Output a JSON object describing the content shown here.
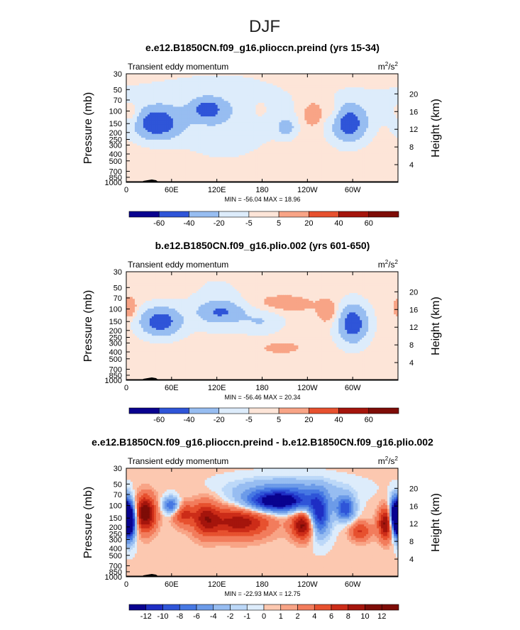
{
  "figure_title": "DJF",
  "palette": {
    "negative": [
      "#09028f",
      "#1e2ec4",
      "#2f55d8",
      "#4678e3",
      "#6c9be8",
      "#97bdf1",
      "#bcd8f8",
      "#ddecfb"
    ],
    "neutral": "#fde5d8",
    "positive": [
      "#fcc8b0",
      "#f8a486",
      "#f27c5c",
      "#e7512f",
      "#cc2c18",
      "#a5150c",
      "#7e0c07"
    ]
  },
  "chart_data": [
    {
      "type": "heatmap",
      "title": "e.e12.B1850CN.f09_g16.plioccn.preind (yrs 15-34)",
      "left_label": "Transient eddy momentum",
      "units": "m²/s²",
      "units_base": "m",
      "units_exp1": "2",
      "units_mid": "/s",
      "units_exp2": "2",
      "ylabel": "Pressure (mb)",
      "ylabel_right": "Height (km)",
      "x_ticks": [
        "0",
        "60E",
        "120E",
        "180",
        "120W",
        "60W"
      ],
      "x_tick_values": [
        0,
        60,
        120,
        180,
        240,
        300
      ],
      "xlim": [
        0,
        360
      ],
      "y_ticks": [
        "30",
        "50",
        "70",
        "100",
        "150",
        "200",
        "250",
        "300",
        "400",
        "500",
        "700",
        "850",
        "1000"
      ],
      "y_tick_values": [
        30,
        50,
        70,
        100,
        150,
        200,
        250,
        300,
        400,
        500,
        700,
        850,
        1000
      ],
      "ylim": [
        1000,
        30
      ],
      "y_scale": "log",
      "height_ticks": [
        "4",
        "8",
        "12",
        "16",
        "20"
      ],
      "height_tick_values": [
        4,
        8,
        12,
        16,
        20
      ],
      "stats": "MIN = -56.04   MAX =  18.96",
      "min": -56.04,
      "max": 18.96,
      "background": 1,
      "levels": [
        -60,
        -40,
        -20,
        -5,
        5,
        20,
        40,
        60
      ],
      "level_labels": [
        "-60",
        "-40",
        "-20",
        "-5",
        "5",
        "20",
        "40",
        "60"
      ],
      "features": [
        {
          "lon": 40,
          "p": 150,
          "value": -54,
          "lon_width": 22,
          "logp_width": 0.16
        },
        {
          "lon": 107,
          "p": 95,
          "value": -40,
          "lon_width": 14,
          "logp_width": 0.1
        },
        {
          "lon": 295,
          "p": 150,
          "value": -52,
          "lon_width": 17,
          "logp_width": 0.19
        },
        {
          "lon": 212,
          "p": 170,
          "value": -28,
          "lon_width": 9,
          "logp_width": 0.1
        },
        {
          "lon": 130,
          "p": 150,
          "value": -15,
          "lon_width": 45,
          "logp_width": 0.35
        },
        {
          "lon": 70,
          "p": 70,
          "value": -8,
          "lon_width": 150,
          "logp_width": 0.3
        },
        {
          "lon": 8,
          "p": 110,
          "value": 17,
          "lon_width": 8,
          "logp_width": 0.1
        },
        {
          "lon": 248,
          "p": 110,
          "value": 18,
          "lon_width": 10,
          "logp_width": 0.12
        },
        {
          "lon": 275,
          "p": 105,
          "value": 14,
          "lon_width": 8,
          "logp_width": 0.12
        },
        {
          "lon": 175,
          "p": 95,
          "value": 9,
          "lon_width": 10,
          "logp_width": 0.12
        },
        {
          "lon": 158,
          "p": 180,
          "value": 7,
          "lon_width": 12,
          "logp_width": 0.12
        }
      ]
    },
    {
      "type": "heatmap",
      "title": "b.e12.B1850CN.f09_g16.plio.002 (yrs 601-650)",
      "left_label": "Transient eddy momentum",
      "units": "m²/s²",
      "units_base": "m",
      "units_exp1": "2",
      "units_mid": "/s",
      "units_exp2": "2",
      "ylabel": "Pressure (mb)",
      "ylabel_right": "Height (km)",
      "x_ticks": [
        "0",
        "60E",
        "120E",
        "180",
        "120W",
        "60W"
      ],
      "x_tick_values": [
        0,
        60,
        120,
        180,
        240,
        300
      ],
      "xlim": [
        0,
        360
      ],
      "y_ticks": [
        "30",
        "50",
        "70",
        "100",
        "150",
        "200",
        "250",
        "300",
        "400",
        "500",
        "700",
        "850",
        "1000"
      ],
      "y_tick_values": [
        30,
        50,
        70,
        100,
        150,
        200,
        250,
        300,
        400,
        500,
        700,
        850,
        1000
      ],
      "ylim": [
        1000,
        30
      ],
      "y_scale": "log",
      "height_ticks": [
        "4",
        "8",
        "12",
        "16",
        "20"
      ],
      "height_tick_values": [
        4,
        8,
        12,
        16,
        20
      ],
      "stats": "MIN = -56.46   MAX =  20.34",
      "min": -56.46,
      "max": 20.34,
      "background": 1,
      "levels": [
        -60,
        -40,
        -20,
        -5,
        5,
        20,
        40,
        60
      ],
      "level_labels": [
        "-60",
        "-40",
        "-20",
        "-5",
        "5",
        "20",
        "40",
        "60"
      ],
      "features": [
        {
          "lon": 45,
          "p": 150,
          "value": -54,
          "lon_width": 20,
          "logp_width": 0.15
        },
        {
          "lon": 300,
          "p": 160,
          "value": -55,
          "lon_width": 15,
          "logp_width": 0.2
        },
        {
          "lon": 125,
          "p": 110,
          "value": -35,
          "lon_width": 22,
          "logp_width": 0.11
        },
        {
          "lon": 180,
          "p": 150,
          "value": -20,
          "lon_width": 20,
          "logp_width": 0.12
        },
        {
          "lon": 120,
          "p": 90,
          "value": -10,
          "lon_width": 30,
          "logp_width": 0.35
        },
        {
          "lon": 5,
          "p": 100,
          "value": 18,
          "lon_width": 7,
          "logp_width": 0.1
        },
        {
          "lon": 205,
          "p": 85,
          "value": 10,
          "lon_width": 30,
          "logp_width": 0.09
        },
        {
          "lon": 270,
          "p": 110,
          "value": 15,
          "lon_width": 10,
          "logp_width": 0.12
        },
        {
          "lon": 205,
          "p": 350,
          "value": 8,
          "lon_width": 20,
          "logp_width": 0.06
        }
      ]
    },
    {
      "type": "heatmap",
      "title": "e.e12.B1850CN.f09_g16.plioccn.preind - b.e12.B1850CN.f09_g16.plio.002",
      "left_label": "Transient eddy momentum",
      "units": "m²/s²",
      "units_base": "m",
      "units_exp1": "2",
      "units_mid": "/s",
      "units_exp2": "2",
      "ylabel": "Pressure (mb)",
      "ylabel_right": "Height (km)",
      "x_ticks": [
        "0",
        "60E",
        "120E",
        "180",
        "120W",
        "60W"
      ],
      "x_tick_values": [
        0,
        60,
        120,
        180,
        240,
        300
      ],
      "xlim": [
        0,
        360
      ],
      "y_ticks": [
        "30",
        "50",
        "70",
        "100",
        "150",
        "200",
        "250",
        "300",
        "400",
        "500",
        "700",
        "850",
        "1000"
      ],
      "y_tick_values": [
        30,
        50,
        70,
        100,
        150,
        200,
        250,
        300,
        400,
        500,
        700,
        850,
        1000
      ],
      "ylim": [
        1000,
        30
      ],
      "y_scale": "log",
      "height_ticks": [
        "4",
        "8",
        "12",
        "16",
        "20"
      ],
      "height_tick_values": [
        4,
        8,
        12,
        16,
        20
      ],
      "stats": "MIN = -22.93   MAX =  12.75",
      "min": -22.93,
      "max": 12.75,
      "background": 0.2,
      "levels": [
        -12,
        -10,
        -8,
        -6,
        -4,
        -2,
        -1,
        0,
        1,
        2,
        4,
        6,
        8,
        10,
        12
      ],
      "level_labels": [
        "-12",
        "-10",
        "-8",
        "-6",
        "-4",
        "-2",
        "-1",
        "0",
        "1",
        "2",
        "4",
        "6",
        "8",
        "10",
        "12"
      ],
      "features": [
        {
          "lon": 4,
          "p": 160,
          "value": -22,
          "lon_width": 6,
          "logp_width": 0.18
        },
        {
          "lon": 356,
          "p": 140,
          "value": -20,
          "lon_width": 5,
          "logp_width": 0.16
        },
        {
          "lon": 200,
          "p": 90,
          "value": -15,
          "lon_width": 30,
          "logp_width": 0.1
        },
        {
          "lon": 255,
          "p": 140,
          "value": -12,
          "lon_width": 10,
          "logp_width": 0.2
        },
        {
          "lon": 290,
          "p": 110,
          "value": -10,
          "lon_width": 9,
          "logp_width": 0.12
        },
        {
          "lon": 60,
          "p": 100,
          "value": -9,
          "lon_width": 8,
          "logp_width": 0.08
        },
        {
          "lon": 210,
          "p": 60,
          "value": -5,
          "lon_width": 50,
          "logp_width": 0.12
        },
        {
          "lon": 25,
          "p": 130,
          "value": 12,
          "lon_width": 10,
          "logp_width": 0.18
        },
        {
          "lon": 150,
          "p": 170,
          "value": 9,
          "lon_width": 30,
          "logp_width": 0.16
        },
        {
          "lon": 235,
          "p": 190,
          "value": 11,
          "lon_width": 11,
          "logp_width": 0.14
        },
        {
          "lon": 345,
          "p": 180,
          "value": 11,
          "lon_width": 8,
          "logp_width": 0.16
        },
        {
          "lon": 105,
          "p": 150,
          "value": 7,
          "lon_width": 12,
          "logp_width": 0.18
        },
        {
          "lon": 75,
          "p": 130,
          "value": 6,
          "lon_width": 10,
          "logp_width": 0.12
        },
        {
          "lon": 310,
          "p": 230,
          "value": 6,
          "lon_width": 10,
          "logp_width": 0.1
        }
      ]
    }
  ]
}
